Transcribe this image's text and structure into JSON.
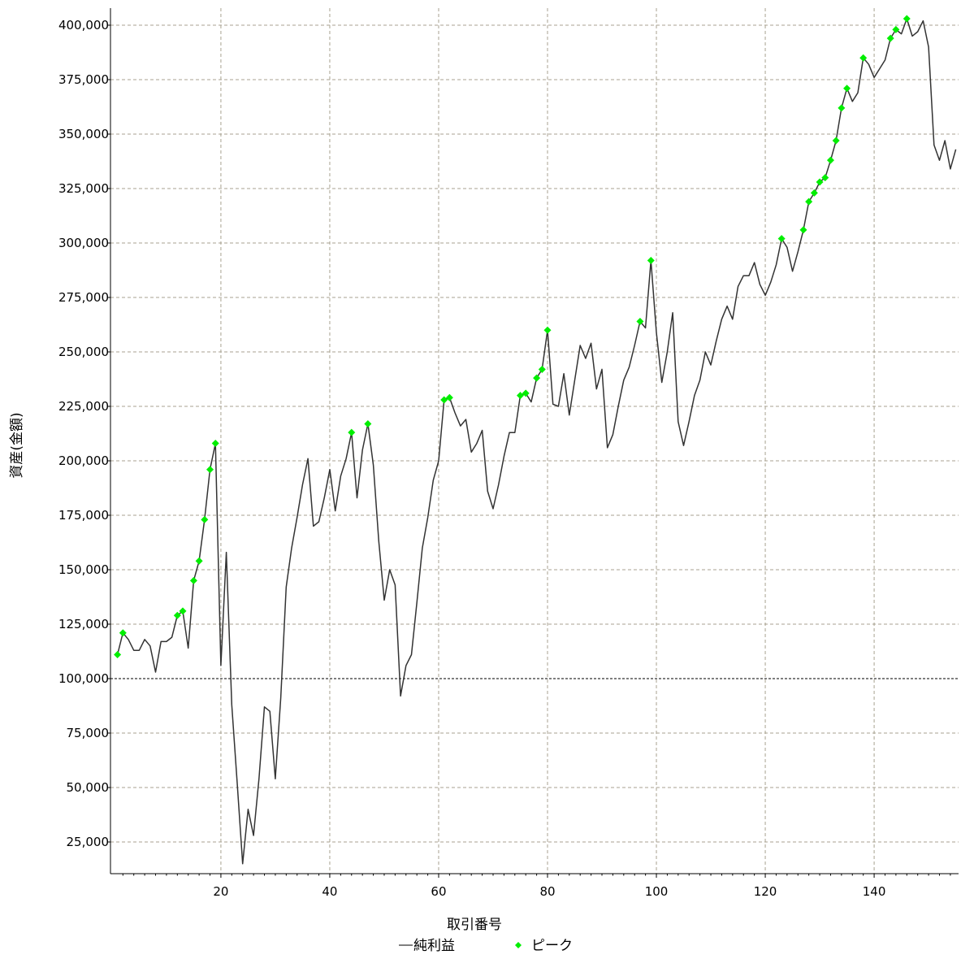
{
  "chart_data": {
    "type": "line",
    "xlabel": "取引番号",
    "ylabel": "資産(金額)",
    "xlim": [
      0,
      156
    ],
    "ylim": [
      13000,
      405000
    ],
    "x_ticks": [
      20,
      40,
      60,
      80,
      100,
      120,
      140
    ],
    "y_ticks": [
      25000,
      50000,
      75000,
      100000,
      125000,
      150000,
      175000,
      200000,
      225000,
      250000,
      275000,
      300000,
      325000,
      350000,
      375000,
      400000
    ],
    "x_tick_labels": [
      "20",
      "40",
      "60",
      "80",
      "100",
      "120",
      "140"
    ],
    "y_tick_labels": [
      "25,000",
      "50,000",
      "75,000",
      "100,000",
      "125,000",
      "150,000",
      "175,000",
      "200,000",
      "225,000",
      "250,000",
      "275,000",
      "300,000",
      "325,000",
      "350,000",
      "375,000",
      "400,000"
    ],
    "reference_line": 100000,
    "grid": true,
    "legend_position": "bottom",
    "series": [
      {
        "name": "純利益",
        "color": "#333333",
        "x": [
          1,
          2,
          3,
          4,
          5,
          6,
          7,
          8,
          9,
          10,
          11,
          12,
          13,
          14,
          15,
          16,
          17,
          18,
          19,
          20,
          21,
          22,
          23,
          24,
          25,
          26,
          27,
          28,
          29,
          30,
          31,
          32,
          33,
          34,
          35,
          36,
          37,
          38,
          39,
          40,
          41,
          42,
          43,
          44,
          45,
          46,
          47,
          48,
          49,
          50,
          51,
          52,
          53,
          54,
          55,
          56,
          57,
          58,
          59,
          60,
          61,
          62,
          63,
          64,
          65,
          66,
          67,
          68,
          69,
          70,
          71,
          72,
          73,
          74,
          75,
          76,
          77,
          78,
          79,
          80,
          81,
          82,
          83,
          84,
          85,
          86,
          87,
          88,
          89,
          90,
          91,
          92,
          93,
          94,
          95,
          96,
          97,
          98,
          99,
          100,
          101,
          102,
          103,
          104,
          105,
          106,
          107,
          108,
          109,
          110,
          111,
          112,
          113,
          114,
          115,
          116,
          117,
          118,
          119,
          120,
          121,
          122,
          123,
          124,
          125,
          126,
          127,
          128,
          129,
          130,
          131,
          132,
          133,
          134,
          135,
          136,
          137,
          138,
          139,
          140,
          141,
          142,
          143,
          144,
          145,
          146,
          147,
          148,
          149,
          150,
          151,
          152,
          153,
          154,
          155
        ],
        "values": [
          111000,
          121000,
          118000,
          113000,
          113000,
          118000,
          115000,
          103000,
          117000,
          117000,
          119000,
          129000,
          131000,
          114000,
          145000,
          154000,
          173000,
          196000,
          208000,
          106000,
          158000,
          88000,
          52000,
          15000,
          40000,
          28000,
          54000,
          87000,
          85000,
          54000,
          91000,
          142000,
          160000,
          174000,
          189000,
          201000,
          170000,
          172000,
          183000,
          196000,
          177000,
          193000,
          201000,
          213000,
          183000,
          205000,
          217000,
          198000,
          163000,
          136000,
          150000,
          143000,
          92000,
          106000,
          111000,
          135000,
          160000,
          174000,
          191000,
          200000,
          228000,
          229000,
          222000,
          216000,
          219000,
          204000,
          208000,
          214000,
          186000,
          178000,
          189000,
          202000,
          213000,
          213000,
          230000,
          231000,
          227000,
          238000,
          242000,
          260000,
          226000,
          225000,
          240000,
          221000,
          237000,
          253000,
          247000,
          254000,
          233000,
          242000,
          206000,
          212000,
          225000,
          237000,
          243000,
          253000,
          264000,
          261000,
          292000,
          259000,
          236000,
          250000,
          268000,
          218000,
          207000,
          218000,
          230000,
          237000,
          250000,
          244000,
          255000,
          265000,
          271000,
          265000,
          280000,
          285000,
          285000,
          291000,
          281000,
          276000,
          282000,
          290000,
          302000,
          298000,
          287000,
          296000,
          306000,
          319000,
          323000,
          328000,
          330000,
          338000,
          347000,
          362000,
          371000,
          365000,
          369000,
          385000,
          382000,
          376000,
          380000,
          384000,
          394000,
          398000,
          396000,
          403000,
          395000,
          397000,
          402000,
          390000,
          345000,
          338000,
          347000,
          334000,
          343000
        ]
      },
      {
        "name": "ピーク",
        "color": "#00ee00",
        "x": [
          1,
          2,
          12,
          13,
          15,
          16,
          17,
          18,
          19,
          44,
          47,
          61,
          62,
          75,
          76,
          78,
          79,
          80,
          97,
          99,
          123,
          127,
          128,
          129,
          130,
          131,
          132,
          133,
          134,
          135,
          138,
          143,
          144,
          146
        ],
        "values": [
          111000,
          121000,
          129000,
          131000,
          145000,
          154000,
          173000,
          196000,
          208000,
          213000,
          217000,
          228000,
          229000,
          230000,
          231000,
          238000,
          242000,
          260000,
          264000,
          292000,
          302000,
          306000,
          319000,
          323000,
          328000,
          330000,
          338000,
          347000,
          362000,
          371000,
          385000,
          394000,
          398000,
          403000
        ]
      }
    ]
  }
}
